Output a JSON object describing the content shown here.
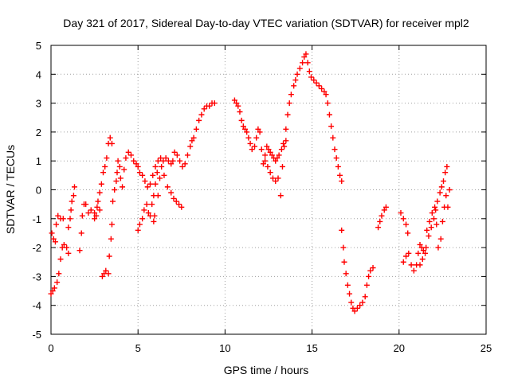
{
  "chart_data": {
    "type": "scatter",
    "title": "Day 321 of 2017, Sidereal Day-to-day VTEC variation (SDTVAR) for receiver mpl2",
    "xlabel": "GPS time / hours",
    "ylabel": "SDTVAR / TECUs",
    "xlim": [
      0,
      25
    ],
    "ylim": [
      -5,
      5
    ],
    "xticks": [
      "0",
      "5",
      "10",
      "15",
      "20",
      "25"
    ],
    "yticks": [
      "-5",
      "-4",
      "-3",
      "-2",
      "-1",
      "0",
      "1",
      "2",
      "3",
      "4",
      "5"
    ],
    "grid": true,
    "marker": "+",
    "color": "#ff0000",
    "series": [
      {
        "name": "SDTVAR",
        "points": [
          [
            0.0,
            -3.6
          ],
          [
            0.1,
            -3.5
          ],
          [
            0.2,
            -3.4
          ],
          [
            0.35,
            -3.2
          ],
          [
            0.45,
            -2.9
          ],
          [
            0.55,
            -2.4
          ],
          [
            0.65,
            -2.0
          ],
          [
            0.75,
            -1.9
          ],
          [
            0.9,
            -2.0
          ],
          [
            1.0,
            -2.2
          ],
          [
            0.05,
            -1.5
          ],
          [
            0.15,
            -1.7
          ],
          [
            0.25,
            -1.8
          ],
          [
            0.3,
            -1.2
          ],
          [
            0.4,
            -0.9
          ],
          [
            0.55,
            -1.0
          ],
          [
            0.7,
            -1.0
          ],
          [
            1.0,
            -1.3
          ],
          [
            1.1,
            -1.0
          ],
          [
            1.15,
            -0.7
          ],
          [
            1.2,
            -0.4
          ],
          [
            1.3,
            -0.2
          ],
          [
            1.35,
            0.1
          ],
          [
            1.65,
            -2.1
          ],
          [
            1.75,
            -1.5
          ],
          [
            1.8,
            -0.9
          ],
          [
            1.9,
            -0.5
          ],
          [
            2.0,
            -0.5
          ],
          [
            2.15,
            -0.8
          ],
          [
            2.3,
            -0.7
          ],
          [
            2.5,
            -0.8
          ],
          [
            2.65,
            -0.6
          ],
          [
            2.8,
            -0.7
          ],
          [
            2.5,
            -1.0
          ],
          [
            2.6,
            -0.9
          ],
          [
            2.7,
            -0.4
          ],
          [
            2.8,
            -0.1
          ],
          [
            2.9,
            0.2
          ],
          [
            3.0,
            0.6
          ],
          [
            3.1,
            0.8
          ],
          [
            3.2,
            1.1
          ],
          [
            3.3,
            1.6
          ],
          [
            3.4,
            1.8
          ],
          [
            3.5,
            1.6
          ],
          [
            2.95,
            -3.0
          ],
          [
            3.05,
            -2.9
          ],
          [
            3.15,
            -2.8
          ],
          [
            3.3,
            -2.9
          ],
          [
            3.35,
            -2.3
          ],
          [
            3.45,
            -1.7
          ],
          [
            3.5,
            -1.2
          ],
          [
            3.55,
            -0.4
          ],
          [
            3.65,
            0.0
          ],
          [
            3.75,
            0.3
          ],
          [
            3.8,
            0.6
          ],
          [
            3.85,
            1.0
          ],
          [
            3.95,
            0.8
          ],
          [
            4.0,
            0.4
          ],
          [
            4.1,
            0.1
          ],
          [
            4.2,
            0.7
          ],
          [
            4.3,
            1.1
          ],
          [
            4.45,
            1.3
          ],
          [
            4.6,
            1.2
          ],
          [
            4.75,
            1.0
          ],
          [
            4.9,
            0.9
          ],
          [
            5.0,
            0.8
          ],
          [
            5.1,
            0.6
          ],
          [
            5.25,
            0.5
          ],
          [
            5.4,
            0.3
          ],
          [
            5.55,
            0.1
          ],
          [
            5.7,
            0.2
          ],
          [
            5.85,
            0.5
          ],
          [
            6.0,
            0.8
          ],
          [
            6.15,
            1.0
          ],
          [
            6.3,
            1.1
          ],
          [
            6.45,
            1.0
          ],
          [
            6.6,
            1.1
          ],
          [
            6.75,
            1.0
          ],
          [
            6.9,
            0.9
          ],
          [
            7.0,
            1.0
          ],
          [
            7.1,
            1.3
          ],
          [
            7.25,
            1.2
          ],
          [
            7.4,
            1.0
          ],
          [
            7.55,
            0.8
          ],
          [
            7.7,
            0.9
          ],
          [
            7.85,
            1.2
          ],
          [
            8.0,
            1.5
          ],
          [
            8.1,
            1.7
          ],
          [
            8.2,
            1.8
          ],
          [
            8.35,
            2.1
          ],
          [
            8.5,
            2.4
          ],
          [
            8.65,
            2.6
          ],
          [
            8.8,
            2.8
          ],
          [
            8.95,
            2.9
          ],
          [
            9.1,
            2.9
          ],
          [
            9.25,
            3.0
          ],
          [
            9.4,
            3.0
          ],
          [
            5.0,
            -1.4
          ],
          [
            5.1,
            -1.2
          ],
          [
            5.25,
            -1.0
          ],
          [
            5.35,
            -0.7
          ],
          [
            5.5,
            -0.5
          ],
          [
            5.6,
            -0.8
          ],
          [
            5.7,
            -0.9
          ],
          [
            5.8,
            -0.5
          ],
          [
            5.9,
            -0.2
          ],
          [
            6.0,
            0.2
          ],
          [
            6.1,
            0.6
          ],
          [
            5.9,
            -1.1
          ],
          [
            5.95,
            -0.9
          ],
          [
            6.15,
            -0.2
          ],
          [
            6.25,
            0.4
          ],
          [
            6.35,
            0.8
          ],
          [
            6.5,
            0.5
          ],
          [
            6.7,
            0.1
          ],
          [
            6.9,
            -0.1
          ],
          [
            7.05,
            -0.3
          ],
          [
            7.2,
            -0.4
          ],
          [
            7.35,
            -0.5
          ],
          [
            7.5,
            -0.6
          ],
          [
            10.55,
            3.1
          ],
          [
            10.65,
            3.0
          ],
          [
            10.75,
            2.9
          ],
          [
            10.85,
            2.7
          ],
          [
            10.95,
            2.4
          ],
          [
            11.05,
            2.2
          ],
          [
            11.15,
            2.1
          ],
          [
            11.25,
            2.0
          ],
          [
            11.35,
            1.8
          ],
          [
            11.45,
            1.6
          ],
          [
            11.55,
            1.4
          ],
          [
            11.7,
            1.5
          ],
          [
            11.8,
            1.8
          ],
          [
            11.9,
            2.1
          ],
          [
            12.0,
            2.0
          ],
          [
            12.1,
            1.4
          ],
          [
            12.2,
            0.9
          ],
          [
            12.3,
            1.2
          ],
          [
            12.4,
            1.5
          ],
          [
            12.5,
            1.4
          ],
          [
            12.6,
            1.3
          ],
          [
            12.7,
            1.2
          ],
          [
            12.8,
            1.1
          ],
          [
            12.9,
            1.0
          ],
          [
            13.0,
            1.1
          ],
          [
            13.1,
            1.2
          ],
          [
            13.25,
            1.4
          ],
          [
            13.35,
            1.6
          ],
          [
            13.5,
            1.7
          ],
          [
            12.3,
            1.0
          ],
          [
            12.45,
            0.8
          ],
          [
            12.6,
            0.6
          ],
          [
            12.75,
            0.4
          ],
          [
            12.9,
            0.3
          ],
          [
            13.05,
            0.4
          ],
          [
            13.2,
            -0.2
          ],
          [
            13.3,
            0.8
          ],
          [
            13.4,
            1.5
          ],
          [
            13.5,
            2.1
          ],
          [
            13.6,
            2.6
          ],
          [
            13.7,
            3.0
          ],
          [
            13.8,
            3.3
          ],
          [
            13.95,
            3.6
          ],
          [
            14.05,
            3.8
          ],
          [
            14.15,
            4.0
          ],
          [
            14.3,
            4.2
          ],
          [
            14.45,
            4.4
          ],
          [
            14.55,
            4.6
          ],
          [
            14.65,
            4.7
          ],
          [
            14.75,
            4.4
          ],
          [
            14.85,
            4.1
          ],
          [
            14.95,
            3.9
          ],
          [
            15.1,
            3.8
          ],
          [
            15.25,
            3.7
          ],
          [
            15.4,
            3.6
          ],
          [
            15.55,
            3.5
          ],
          [
            15.7,
            3.4
          ],
          [
            15.8,
            3.3
          ],
          [
            15.9,
            3.0
          ],
          [
            16.0,
            2.6
          ],
          [
            16.1,
            2.2
          ],
          [
            16.2,
            1.8
          ],
          [
            16.3,
            1.4
          ],
          [
            16.4,
            1.1
          ],
          [
            16.5,
            0.8
          ],
          [
            16.6,
            0.5
          ],
          [
            16.7,
            0.3
          ],
          [
            16.7,
            -1.4
          ],
          [
            16.8,
            -2.0
          ],
          [
            16.85,
            -2.5
          ],
          [
            16.95,
            -2.9
          ],
          [
            17.05,
            -3.3
          ],
          [
            17.15,
            -3.6
          ],
          [
            17.25,
            -3.9
          ],
          [
            17.35,
            -4.1
          ],
          [
            17.45,
            -4.2
          ],
          [
            17.6,
            -4.1
          ],
          [
            17.75,
            -4.0
          ],
          [
            17.9,
            -3.9
          ],
          [
            18.05,
            -3.7
          ],
          [
            18.15,
            -3.3
          ],
          [
            18.25,
            -3.0
          ],
          [
            18.35,
            -2.8
          ],
          [
            18.5,
            -2.7
          ],
          [
            18.8,
            -1.3
          ],
          [
            18.9,
            -1.1
          ],
          [
            19.0,
            -0.9
          ],
          [
            19.15,
            -0.7
          ],
          [
            19.25,
            -0.6
          ],
          [
            20.1,
            -0.8
          ],
          [
            20.25,
            -1.0
          ],
          [
            20.4,
            -1.2
          ],
          [
            20.5,
            -1.5
          ],
          [
            20.25,
            -2.5
          ],
          [
            20.4,
            -2.3
          ],
          [
            20.55,
            -2.2
          ],
          [
            20.7,
            -2.6
          ],
          [
            20.85,
            -2.8
          ],
          [
            21.0,
            -2.6
          ],
          [
            21.1,
            -2.2
          ],
          [
            21.2,
            -1.9
          ],
          [
            21.3,
            -2.0
          ],
          [
            21.4,
            -2.1
          ],
          [
            21.55,
            -2.0
          ],
          [
            21.7,
            -1.6
          ],
          [
            21.85,
            -1.3
          ],
          [
            22.0,
            -1.0
          ],
          [
            22.1,
            -0.7
          ],
          [
            22.2,
            -0.4
          ],
          [
            22.35,
            -0.1
          ],
          [
            22.45,
            0.1
          ],
          [
            22.55,
            0.3
          ],
          [
            22.65,
            0.6
          ],
          [
            22.75,
            0.8
          ],
          [
            21.2,
            -2.6
          ],
          [
            21.35,
            -2.4
          ],
          [
            21.5,
            -2.2
          ],
          [
            21.6,
            -1.4
          ],
          [
            21.75,
            -1.1
          ],
          [
            21.9,
            -0.8
          ],
          [
            22.05,
            -0.6
          ],
          [
            22.15,
            -1.2
          ],
          [
            22.25,
            -2.0
          ],
          [
            22.4,
            -1.7
          ],
          [
            22.5,
            -1.1
          ],
          [
            22.6,
            -0.6
          ],
          [
            22.7,
            -0.2
          ],
          [
            22.8,
            -0.6
          ],
          [
            22.9,
            0.0
          ]
        ]
      }
    ]
  }
}
